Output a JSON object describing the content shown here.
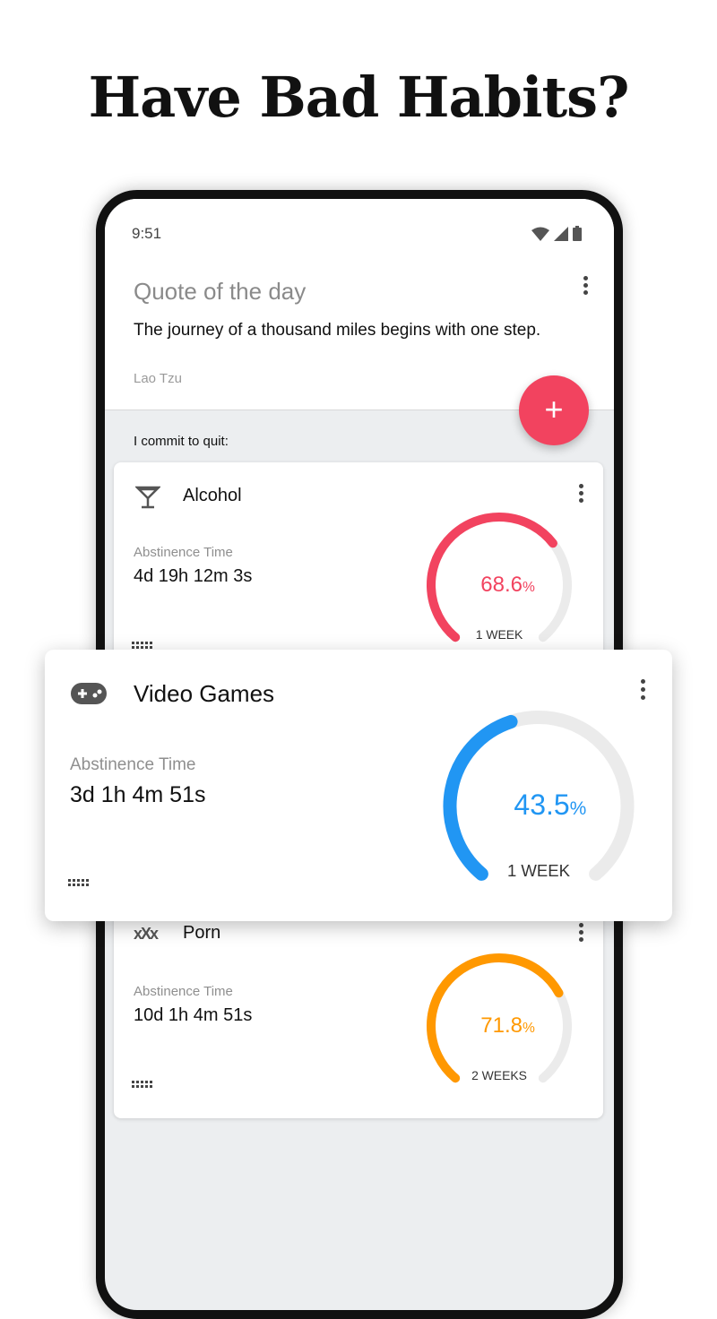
{
  "headline": "Have Bad Habits?",
  "status": {
    "time": "9:51",
    "icons": [
      "wifi-icon",
      "signal-icon",
      "battery-icon"
    ]
  },
  "quote": {
    "title": "Quote of the day",
    "text": "The journey of a thousand miles begins with one step.",
    "author": "Lao Tzu"
  },
  "fab": {
    "label": "+",
    "color": "#f2435f"
  },
  "section_label": "I commit to quit:",
  "habits": [
    {
      "name": "Alcohol",
      "icon": "cocktail-glass-icon",
      "label": "Abstinence Time",
      "time": "4d 19h 12m 3s",
      "percent": "68.6",
      "percent_sign": "%",
      "goal": "1 WEEK",
      "progress": 0.686,
      "color": "#f2435f"
    },
    {
      "name": "Video Games",
      "icon": "gamepad-icon",
      "label": "Abstinence Time",
      "time": "3d 1h 4m 51s",
      "percent": "43.5",
      "percent_sign": "%",
      "goal": "1 WEEK",
      "progress": 0.435,
      "color": "#2196f3"
    },
    {
      "name": "Porn",
      "icon": "xxx-icon",
      "icon_text": "xXx",
      "label": "Abstinence Time",
      "time": "10d 1h 4m 51s",
      "percent": "71.8",
      "percent_sign": "%",
      "goal": "2 WEEKS",
      "progress": 0.718,
      "color": "#ff9800"
    }
  ]
}
